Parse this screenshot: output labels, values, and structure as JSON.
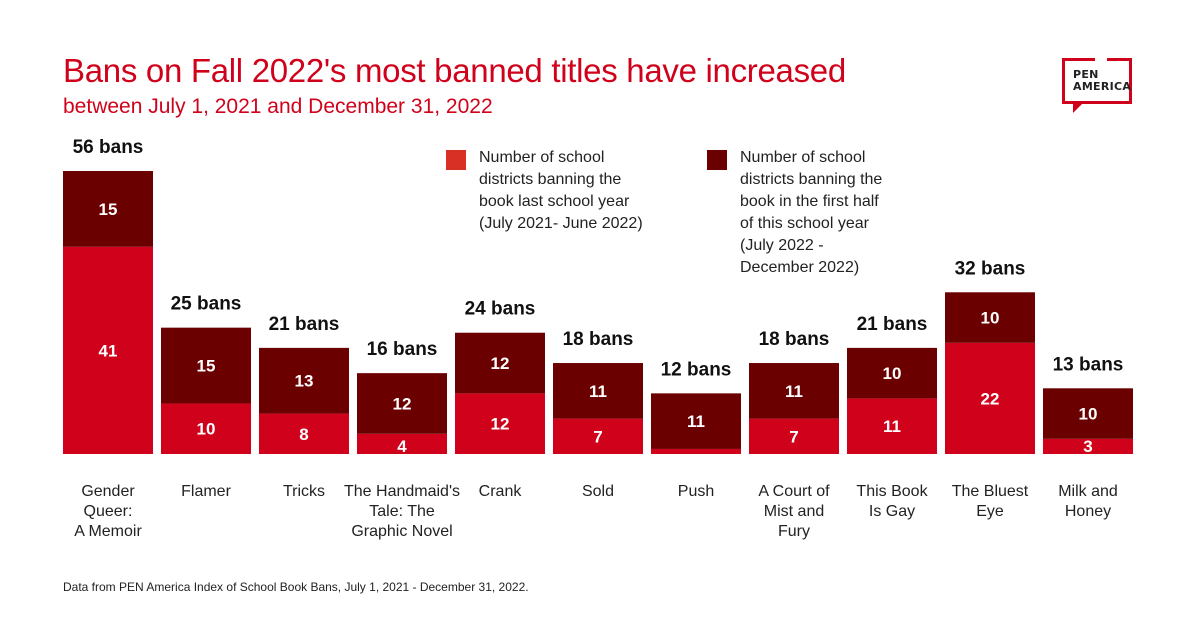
{
  "header": {
    "title": "Bans on Fall 2022's most banned titles have increased",
    "subtitle": "between July 1, 2021 and December 31, 2022",
    "logo_line1": "PEN",
    "logo_line2": "AMERICA"
  },
  "colors": {
    "title": "#d0021b",
    "last_year": "#d0021b",
    "this_year": "#6b0000",
    "legend_last_year_swatch": "#d93025"
  },
  "footer": {
    "source": "Data from PEN America Index of School Book Bans, July 1, 2021 - December 31, 2022."
  },
  "chart_data": {
    "type": "bar",
    "stacked": true,
    "title": "Bans on Fall 2022's most banned titles have increased",
    "subtitle": "between July 1, 2021 and December 31, 2022",
    "xlabel": "",
    "ylabel": "",
    "ylim": [
      0,
      56
    ],
    "grid": false,
    "legend_position": "top",
    "categories": [
      [
        "Gender",
        "Queer:",
        "A Memoir"
      ],
      [
        "Flamer"
      ],
      [
        "Tricks"
      ],
      [
        "The Handmaid's",
        "Tale: The",
        "Graphic Novel"
      ],
      [
        "Crank"
      ],
      [
        "Sold"
      ],
      [
        "Push"
      ],
      [
        "A Court of",
        "Mist and",
        "Fury"
      ],
      [
        "This Book",
        "Is Gay"
      ],
      [
        "The Bluest",
        "Eye"
      ],
      [
        "Milk and",
        "Honey"
      ]
    ],
    "series": [
      {
        "name": "Number of school districts banning the book last school year (July 2021- June 2022)",
        "legend_lines": [
          "Number of school",
          "districts banning the",
          "book last school year",
          "(July 2021- June 2022)"
        ],
        "values": [
          41,
          10,
          8,
          4,
          12,
          7,
          1,
          7,
          11,
          22,
          3
        ],
        "show_labels": [
          true,
          true,
          true,
          true,
          true,
          true,
          false,
          true,
          true,
          true,
          true
        ]
      },
      {
        "name": "Number of school districts banning the book in the first half of this school year (July 2022 - December 2022)",
        "legend_lines": [
          "Number of school",
          "districts banning the",
          "book in the first half",
          "of this school year",
          "(July 2022 -",
          "December 2022)"
        ],
        "values": [
          15,
          15,
          13,
          12,
          12,
          11,
          11,
          11,
          10,
          10,
          10
        ],
        "show_labels": [
          true,
          true,
          true,
          true,
          true,
          true,
          true,
          true,
          true,
          true,
          true
        ]
      }
    ],
    "totals": [
      56,
      25,
      21,
      16,
      24,
      18,
      12,
      18,
      21,
      32,
      13
    ],
    "total_suffix": " bans"
  }
}
